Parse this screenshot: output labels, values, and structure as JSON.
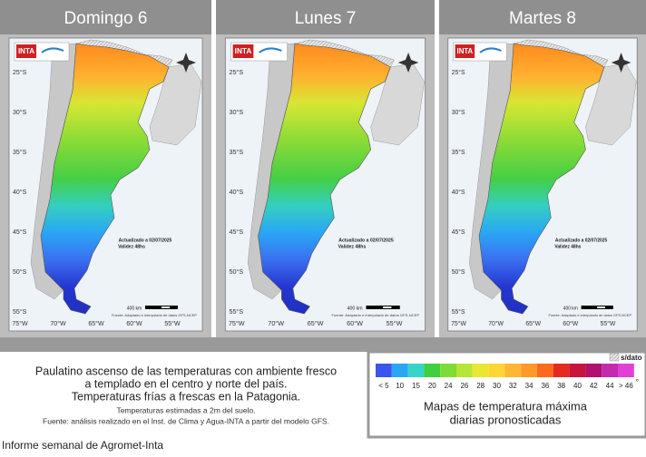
{
  "panels": [
    {
      "title": "Domingo 6"
    },
    {
      "title": "Lunes 7"
    },
    {
      "title": "Martes 8"
    }
  ],
  "map_labels": {
    "logo": "INTA",
    "latitudes": [
      "25°S",
      "30°S",
      "35°S",
      "40°S",
      "45°S",
      "50°S",
      "55°S"
    ],
    "longitudes": [
      "75°W",
      "70°W",
      "65°W",
      "60°W",
      "55°W"
    ],
    "updated": "Actualizado a 02/07/2025",
    "validity": "Validez 48hs",
    "scale": "400 km",
    "source": "Fuente: Adaptado e interpolado de datos GFS-NCEP"
  },
  "summary": {
    "lines": [
      "Paulatino ascenso de las temperaturas con ambiente fresco",
      "a templado en el centro y norte del país.",
      "Temperaturas frías a frescas en la Patagonia."
    ],
    "notes": [
      "Temperaturas estimadas a 2m del suelo.",
      "Fuente: análisis realizado en el Inst. de Clima y Agua-INTA a partir del modelo GFS."
    ]
  },
  "legend": {
    "labels": [
      "< 5",
      "10",
      "15",
      "20",
      "24",
      "26",
      "28",
      "30",
      "32",
      "34",
      "36",
      "38",
      "40",
      "42",
      "44",
      "> 46"
    ],
    "colors": [
      "#3a55f0",
      "#2aa6f5",
      "#35d6c8",
      "#3fcf3f",
      "#7fdc35",
      "#b5e635",
      "#e8e833",
      "#ffd633",
      "#ffb830",
      "#ff9a28",
      "#ff6a1e",
      "#e62a1f",
      "#c8143a",
      "#b01070",
      "#c42ab0",
      "#e040d8"
    ],
    "unit": "°",
    "no_data": "s/dato",
    "title_lines": [
      "Mapas de temperatura máxima",
      "diarias pronosticadas"
    ]
  },
  "caption": "Informe semanal de Agromet-Inta"
}
